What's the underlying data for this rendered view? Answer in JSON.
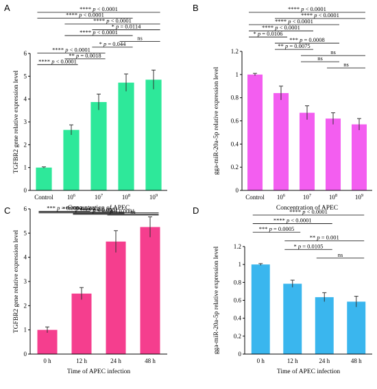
{
  "charts": [
    {
      "panel": "A",
      "type": "bar",
      "categories": [
        {
          "base": "Control",
          "sup": ""
        },
        {
          "base": "10",
          "sup": "6"
        },
        {
          "base": "10",
          "sup": "7"
        },
        {
          "base": "10",
          "sup": "8"
        },
        {
          "base": "10",
          "sup": "9"
        }
      ],
      "values": [
        1.0,
        2.65,
        3.87,
        4.72,
        4.85
      ],
      "errors": [
        0.03,
        0.22,
        0.35,
        0.38,
        0.42
      ],
      "ylim": [
        0,
        6
      ],
      "yticks": [
        "0",
        "1",
        "2",
        "3",
        "4",
        "5",
        "6"
      ],
      "ylabel": "TGFBR2 gene relative expression level",
      "xlabel": "Concentration of APEC",
      "color": "#2ee89a",
      "comparisons": [
        {
          "from": 0,
          "to": 4,
          "label": "**** p < 0.0001"
        },
        {
          "from": 0,
          "to": 3,
          "label": "**** p < 0.0001"
        },
        {
          "from": 1,
          "to": 4,
          "label": "**** p < 0.0001"
        },
        {
          "from": 2,
          "to": 4,
          "label": "* p = 0.0114"
        },
        {
          "from": 1,
          "to": 3,
          "label": "**** p < 0.0001"
        },
        {
          "from": 3,
          "to": 4,
          "label": "ns"
        },
        {
          "from": 2,
          "to": 3,
          "label": "* p = 0.044"
        },
        {
          "from": 0,
          "to": 2,
          "label": "**** p < 0.0001"
        },
        {
          "from": 1,
          "to": 2,
          "label": "** p = 0.0018"
        },
        {
          "from": 0,
          "to": 1,
          "label": "**** p < 0.0001"
        }
      ]
    },
    {
      "panel": "B",
      "type": "bar",
      "categories": [
        {
          "base": "Control",
          "sup": ""
        },
        {
          "base": "10",
          "sup": "6"
        },
        {
          "base": "10",
          "sup": "7"
        },
        {
          "base": "10",
          "sup": "8"
        },
        {
          "base": "10",
          "sup": "9"
        }
      ],
      "values": [
        1.0,
        0.84,
        0.67,
        0.62,
        0.57
      ],
      "errors": [
        0.01,
        0.06,
        0.06,
        0.05,
        0.05
      ],
      "ylim": [
        0,
        1.2
      ],
      "yticks": [
        "0",
        "0.2",
        "0.4",
        "0.6",
        "0.8",
        "1",
        "1.2"
      ],
      "ylabel": "gga-miR-20a-5p relative expression level",
      "xlabel": "Concentration of APEC",
      "color": "#f35ef0",
      "comparisons": [
        {
          "from": 0,
          "to": 4,
          "label": "**** p < 0.0001"
        },
        {
          "from": 1,
          "to": 4,
          "label": "**** p < 0.0001"
        },
        {
          "from": 0,
          "to": 3,
          "label": "**** p < 0.0001"
        },
        {
          "from": 0,
          "to": 2,
          "label": "**** p < 0.0001"
        },
        {
          "from": 0,
          "to": 1,
          "label": "* p = 0.0106"
        },
        {
          "from": 1,
          "to": 3,
          "label": "*** p = 0.0008"
        },
        {
          "from": 1,
          "to": 2,
          "label": "** p = 0.0075"
        },
        {
          "from": 2,
          "to": 4,
          "label": "ns"
        },
        {
          "from": 2,
          "to": 3,
          "label": "ns"
        },
        {
          "from": 3,
          "to": 4,
          "label": "ns"
        }
      ]
    },
    {
      "panel": "C",
      "type": "bar",
      "categories": [
        {
          "base": "0 h",
          "sup": ""
        },
        {
          "base": "12 h",
          "sup": ""
        },
        {
          "base": "24 h",
          "sup": ""
        },
        {
          "base": "48 h",
          "sup": ""
        }
      ],
      "values": [
        1.0,
        2.5,
        4.65,
        5.25
      ],
      "errors": [
        0.12,
        0.25,
        0.45,
        0.42
      ],
      "ylim": [
        0,
        6
      ],
      "yticks": [
        "0",
        "1",
        "2",
        "3",
        "4",
        "5",
        "6"
      ],
      "ylabel": "TGFBR2 gene relative expression level",
      "xlabel": "Time of APEC infection",
      "color": "#f53e8e",
      "comparisons": [
        {
          "from": 2,
          "to": 3,
          "label": "ns"
        },
        {
          "from": 1,
          "to": 3,
          "label": "**** p < 0.0001"
        },
        {
          "from": 1,
          "to": 2,
          "label": "**** p < 0.0001"
        },
        {
          "from": 0,
          "to": 3,
          "label": "**** p < 0.0001"
        },
        {
          "from": 0,
          "to": 2,
          "label": "**** p < 0.0001"
        },
        {
          "from": 0,
          "to": 1,
          "label": "*** p = 0.0004"
        }
      ]
    },
    {
      "panel": "D",
      "type": "bar",
      "categories": [
        {
          "base": "0 h",
          "sup": ""
        },
        {
          "base": "12 h",
          "sup": ""
        },
        {
          "base": "24 h",
          "sup": ""
        },
        {
          "base": "48 h",
          "sup": ""
        }
      ],
      "values": [
        1.0,
        0.785,
        0.635,
        0.585
      ],
      "errors": [
        0.01,
        0.04,
        0.05,
        0.06
      ],
      "ylim": [
        0,
        1.2
      ],
      "yticks": [
        "0",
        "0.2",
        "0.4",
        "0.6",
        "0.8",
        "1",
        "1.2"
      ],
      "ylabel": "gga-miR-20a-5p relative expression level",
      "xlabel": "Time of APEC infection",
      "color": "#3ab6ee",
      "comparisons": [
        {
          "from": 0,
          "to": 3,
          "label": "**** p < 0.0001"
        },
        {
          "from": 0,
          "to": 2,
          "label": "**** p < 0.0001"
        },
        {
          "from": 0,
          "to": 1,
          "label": "*** p = 0.0005"
        },
        {
          "from": 1,
          "to": 3,
          "label": "** p = 0.001"
        },
        {
          "from": 1,
          "to": 2,
          "label": "* p = 0.0105"
        },
        {
          "from": 2,
          "to": 3,
          "label": "ns"
        }
      ]
    }
  ]
}
